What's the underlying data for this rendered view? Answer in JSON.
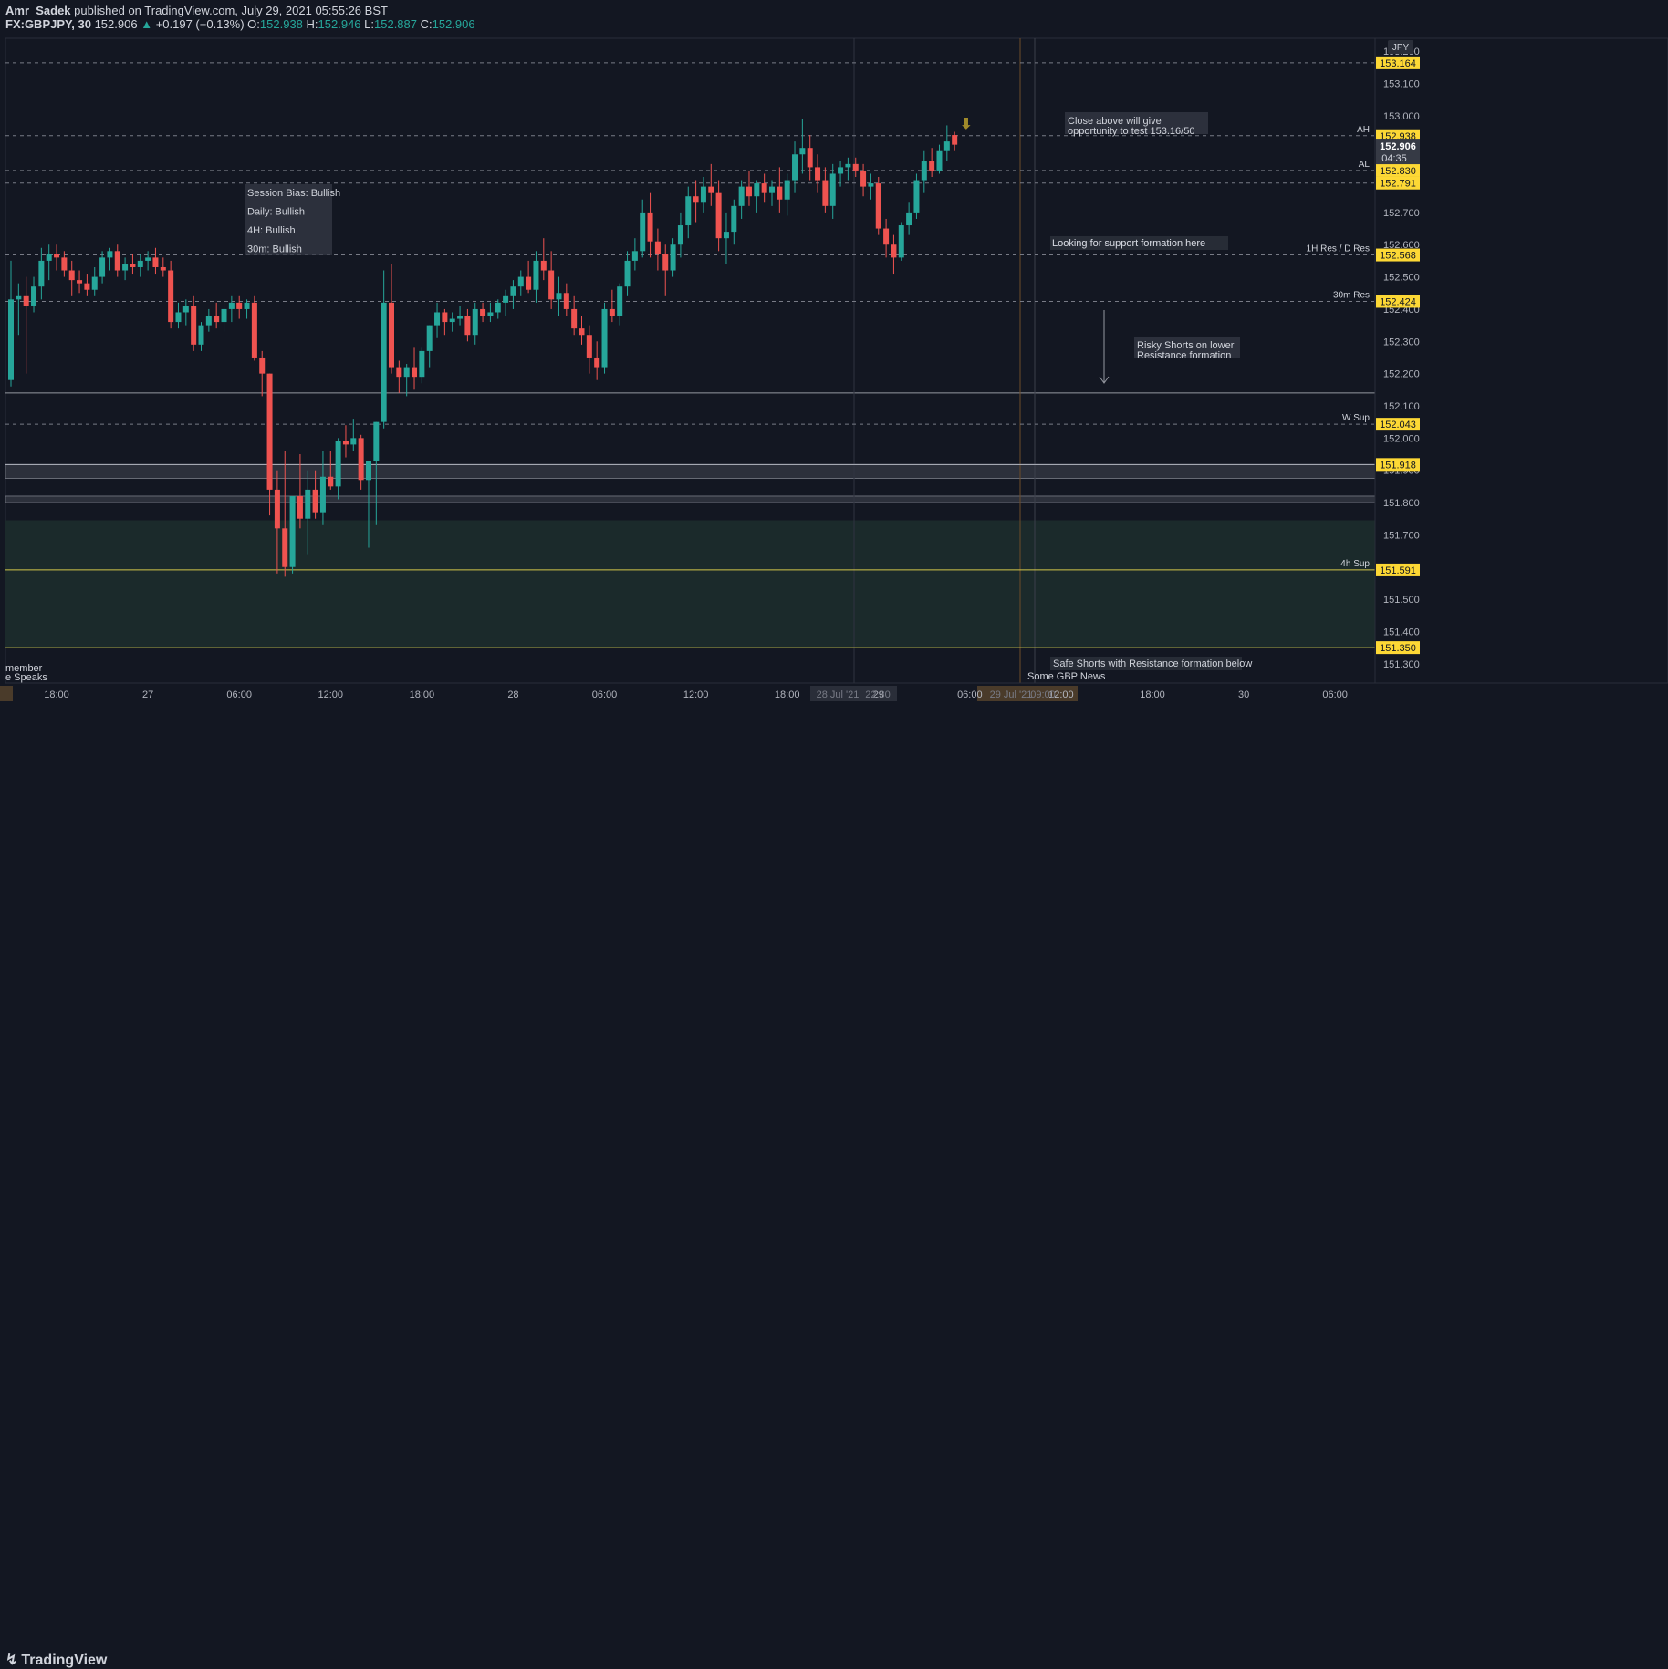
{
  "header": {
    "author": "Amr_Sadek",
    "published_text": "published on TradingView.com, July 29, 2021 05:55:26 BST",
    "symbol": "FX:GBPJPY, 30",
    "last": "152.906",
    "change": "+0.197 (+0.13%)",
    "o_label": "O:",
    "o_value": "152.938",
    "h_label": "H:",
    "h_value": "152.946",
    "l_label": "L:",
    "l_value": "152.887",
    "c_label": "C:",
    "c_value": "152.906"
  },
  "footer": {
    "brand": "TradingView"
  },
  "colors": {
    "background": "#131722",
    "up": "#26a69a",
    "down": "#ef5350",
    "label_bg": "#fdd835",
    "text": "#d1d4dc",
    "zone": "#1b2a2b"
  },
  "chart_data": {
    "type": "candlestick",
    "currency": "JPY",
    "y_range": [
      151.24,
      153.24
    ],
    "y_ticks": [
      "153.200",
      "153.100",
      "153.000",
      "152.900",
      "152.800",
      "152.700",
      "152.600",
      "152.500",
      "152.400",
      "152.300",
      "152.200",
      "152.100",
      "152.000",
      "151.900",
      "151.800",
      "151.700",
      "151.600",
      "151.500",
      "151.400",
      "151.300"
    ],
    "x_ticks": [
      {
        "label": "18:00",
        "bar": 6
      },
      {
        "label": "27",
        "bar": 18
      },
      {
        "label": "06:00",
        "bar": 30
      },
      {
        "label": "12:00",
        "bar": 42
      },
      {
        "label": "18:00",
        "bar": 54
      },
      {
        "label": "28",
        "bar": 66
      },
      {
        "label": "06:00",
        "bar": 78
      },
      {
        "label": "12:00",
        "bar": 90
      },
      {
        "label": "18:00",
        "bar": 102
      },
      {
        "label": "29",
        "bar": 114
      },
      {
        "label": "06:00",
        "bar": 126
      },
      {
        "label": "12:00",
        "bar": 138
      },
      {
        "label": "18:00",
        "bar": 150
      },
      {
        "label": "30",
        "bar": 162
      },
      {
        "label": "06:00",
        "bar": 174
      }
    ],
    "x_highlight_labels": [
      "28 Jul '21",
      "22:30",
      "29 Jul '21",
      "09:00"
    ],
    "candles": [
      {
        "o": 152.18,
        "h": 152.55,
        "l": 152.16,
        "c": 152.43
      },
      {
        "o": 152.43,
        "h": 152.48,
        "l": 152.32,
        "c": 152.44
      },
      {
        "o": 152.44,
        "h": 152.5,
        "l": 152.2,
        "c": 152.41
      },
      {
        "o": 152.41,
        "h": 152.5,
        "l": 152.39,
        "c": 152.47
      },
      {
        "o": 152.47,
        "h": 152.59,
        "l": 152.43,
        "c": 152.55
      },
      {
        "o": 152.55,
        "h": 152.6,
        "l": 152.49,
        "c": 152.57
      },
      {
        "o": 152.57,
        "h": 152.6,
        "l": 152.52,
        "c": 152.56
      },
      {
        "o": 152.56,
        "h": 152.58,
        "l": 152.5,
        "c": 152.52
      },
      {
        "o": 152.52,
        "h": 152.55,
        "l": 152.44,
        "c": 152.49
      },
      {
        "o": 152.49,
        "h": 152.52,
        "l": 152.45,
        "c": 152.48
      },
      {
        "o": 152.48,
        "h": 152.51,
        "l": 152.44,
        "c": 152.46
      },
      {
        "o": 152.46,
        "h": 152.53,
        "l": 152.44,
        "c": 152.5
      },
      {
        "o": 152.5,
        "h": 152.58,
        "l": 152.48,
        "c": 152.56
      },
      {
        "o": 152.56,
        "h": 152.59,
        "l": 152.52,
        "c": 152.58
      },
      {
        "o": 152.58,
        "h": 152.6,
        "l": 152.5,
        "c": 152.52
      },
      {
        "o": 152.52,
        "h": 152.56,
        "l": 152.49,
        "c": 152.54
      },
      {
        "o": 152.54,
        "h": 152.57,
        "l": 152.51,
        "c": 152.53
      },
      {
        "o": 152.53,
        "h": 152.57,
        "l": 152.5,
        "c": 152.55
      },
      {
        "o": 152.55,
        "h": 152.58,
        "l": 152.52,
        "c": 152.56
      },
      {
        "o": 152.56,
        "h": 152.59,
        "l": 152.51,
        "c": 152.53
      },
      {
        "o": 152.53,
        "h": 152.56,
        "l": 152.5,
        "c": 152.52
      },
      {
        "o": 152.52,
        "h": 152.55,
        "l": 152.34,
        "c": 152.36
      },
      {
        "o": 152.36,
        "h": 152.42,
        "l": 152.34,
        "c": 152.39
      },
      {
        "o": 152.39,
        "h": 152.43,
        "l": 152.35,
        "c": 152.41
      },
      {
        "o": 152.41,
        "h": 152.44,
        "l": 152.27,
        "c": 152.29
      },
      {
        "o": 152.29,
        "h": 152.36,
        "l": 152.27,
        "c": 152.35
      },
      {
        "o": 152.35,
        "h": 152.4,
        "l": 152.33,
        "c": 152.38
      },
      {
        "o": 152.38,
        "h": 152.42,
        "l": 152.34,
        "c": 152.36
      },
      {
        "o": 152.36,
        "h": 152.42,
        "l": 152.33,
        "c": 152.4
      },
      {
        "o": 152.4,
        "h": 152.44,
        "l": 152.36,
        "c": 152.42
      },
      {
        "o": 152.42,
        "h": 152.44,
        "l": 152.37,
        "c": 152.4
      },
      {
        "o": 152.4,
        "h": 152.43,
        "l": 152.37,
        "c": 152.42
      },
      {
        "o": 152.42,
        "h": 152.44,
        "l": 152.24,
        "c": 152.25
      },
      {
        "o": 152.25,
        "h": 152.27,
        "l": 152.13,
        "c": 152.2
      },
      {
        "o": 152.2,
        "h": 152.2,
        "l": 151.76,
        "c": 151.84
      },
      {
        "o": 151.84,
        "h": 151.9,
        "l": 151.58,
        "c": 151.72
      },
      {
        "o": 151.72,
        "h": 151.96,
        "l": 151.57,
        "c": 151.6
      },
      {
        "o": 151.6,
        "h": 151.82,
        "l": 151.58,
        "c": 151.82
      },
      {
        "o": 151.82,
        "h": 151.95,
        "l": 151.72,
        "c": 151.75
      },
      {
        "o": 151.75,
        "h": 151.9,
        "l": 151.64,
        "c": 151.84
      },
      {
        "o": 151.84,
        "h": 151.9,
        "l": 151.75,
        "c": 151.77
      },
      {
        "o": 151.77,
        "h": 151.96,
        "l": 151.73,
        "c": 151.88
      },
      {
        "o": 151.88,
        "h": 151.96,
        "l": 151.84,
        "c": 151.85
      },
      {
        "o": 151.85,
        "h": 152.0,
        "l": 151.81,
        "c": 151.99
      },
      {
        "o": 151.99,
        "h": 152.04,
        "l": 151.94,
        "c": 151.98
      },
      {
        "o": 151.98,
        "h": 152.06,
        "l": 151.96,
        "c": 152.0
      },
      {
        "o": 152.0,
        "h": 152.01,
        "l": 151.84,
        "c": 151.87
      },
      {
        "o": 151.87,
        "h": 151.93,
        "l": 151.66,
        "c": 151.93
      },
      {
        "o": 151.93,
        "h": 152.05,
        "l": 151.73,
        "c": 152.05
      },
      {
        "o": 152.05,
        "h": 152.52,
        "l": 152.03,
        "c": 152.42
      },
      {
        "o": 152.42,
        "h": 152.54,
        "l": 152.2,
        "c": 152.22
      },
      {
        "o": 152.22,
        "h": 152.24,
        "l": 152.14,
        "c": 152.19
      },
      {
        "o": 152.19,
        "h": 152.23,
        "l": 152.13,
        "c": 152.22
      },
      {
        "o": 152.22,
        "h": 152.28,
        "l": 152.15,
        "c": 152.19
      },
      {
        "o": 152.19,
        "h": 152.28,
        "l": 152.17,
        "c": 152.27
      },
      {
        "o": 152.27,
        "h": 152.35,
        "l": 152.22,
        "c": 152.35
      },
      {
        "o": 152.35,
        "h": 152.42,
        "l": 152.31,
        "c": 152.39
      },
      {
        "o": 152.39,
        "h": 152.4,
        "l": 152.32,
        "c": 152.36
      },
      {
        "o": 152.36,
        "h": 152.39,
        "l": 152.33,
        "c": 152.37
      },
      {
        "o": 152.37,
        "h": 152.41,
        "l": 152.35,
        "c": 152.38
      },
      {
        "o": 152.38,
        "h": 152.4,
        "l": 152.3,
        "c": 152.32
      },
      {
        "o": 152.32,
        "h": 152.42,
        "l": 152.29,
        "c": 152.4
      },
      {
        "o": 152.4,
        "h": 152.42,
        "l": 152.36,
        "c": 152.38
      },
      {
        "o": 152.38,
        "h": 152.42,
        "l": 152.36,
        "c": 152.39
      },
      {
        "o": 152.39,
        "h": 152.43,
        "l": 152.37,
        "c": 152.42
      },
      {
        "o": 152.42,
        "h": 152.46,
        "l": 152.38,
        "c": 152.44
      },
      {
        "o": 152.44,
        "h": 152.49,
        "l": 152.4,
        "c": 152.47
      },
      {
        "o": 152.47,
        "h": 152.52,
        "l": 152.44,
        "c": 152.5
      },
      {
        "o": 152.5,
        "h": 152.55,
        "l": 152.45,
        "c": 152.46
      },
      {
        "o": 152.46,
        "h": 152.58,
        "l": 152.42,
        "c": 152.55
      },
      {
        "o": 152.55,
        "h": 152.62,
        "l": 152.49,
        "c": 152.52
      },
      {
        "o": 152.52,
        "h": 152.58,
        "l": 152.4,
        "c": 152.43
      },
      {
        "o": 152.43,
        "h": 152.5,
        "l": 152.38,
        "c": 152.45
      },
      {
        "o": 152.45,
        "h": 152.48,
        "l": 152.38,
        "c": 152.4
      },
      {
        "o": 152.4,
        "h": 152.44,
        "l": 152.32,
        "c": 152.34
      },
      {
        "o": 152.34,
        "h": 152.38,
        "l": 152.29,
        "c": 152.32
      },
      {
        "o": 152.32,
        "h": 152.35,
        "l": 152.2,
        "c": 152.25
      },
      {
        "o": 152.25,
        "h": 152.3,
        "l": 152.18,
        "c": 152.22
      },
      {
        "o": 152.22,
        "h": 152.42,
        "l": 152.2,
        "c": 152.4
      },
      {
        "o": 152.4,
        "h": 152.46,
        "l": 152.36,
        "c": 152.38
      },
      {
        "o": 152.38,
        "h": 152.48,
        "l": 152.35,
        "c": 152.47
      },
      {
        "o": 152.47,
        "h": 152.58,
        "l": 152.44,
        "c": 152.55
      },
      {
        "o": 152.55,
        "h": 152.62,
        "l": 152.52,
        "c": 152.58
      },
      {
        "o": 152.58,
        "h": 152.74,
        "l": 152.56,
        "c": 152.7
      },
      {
        "o": 152.7,
        "h": 152.76,
        "l": 152.56,
        "c": 152.61
      },
      {
        "o": 152.61,
        "h": 152.65,
        "l": 152.52,
        "c": 152.57
      },
      {
        "o": 152.57,
        "h": 152.6,
        "l": 152.44,
        "c": 152.52
      },
      {
        "o": 152.52,
        "h": 152.62,
        "l": 152.5,
        "c": 152.6
      },
      {
        "o": 152.6,
        "h": 152.7,
        "l": 152.56,
        "c": 152.66
      },
      {
        "o": 152.66,
        "h": 152.78,
        "l": 152.62,
        "c": 152.75
      },
      {
        "o": 152.75,
        "h": 152.8,
        "l": 152.67,
        "c": 152.73
      },
      {
        "o": 152.73,
        "h": 152.81,
        "l": 152.7,
        "c": 152.78
      },
      {
        "o": 152.78,
        "h": 152.85,
        "l": 152.72,
        "c": 152.76
      },
      {
        "o": 152.76,
        "h": 152.8,
        "l": 152.58,
        "c": 152.62
      },
      {
        "o": 152.62,
        "h": 152.7,
        "l": 152.54,
        "c": 152.64
      },
      {
        "o": 152.64,
        "h": 152.74,
        "l": 152.6,
        "c": 152.72
      },
      {
        "o": 152.72,
        "h": 152.8,
        "l": 152.68,
        "c": 152.78
      },
      {
        "o": 152.78,
        "h": 152.83,
        "l": 152.72,
        "c": 152.75
      },
      {
        "o": 152.75,
        "h": 152.8,
        "l": 152.7,
        "c": 152.79
      },
      {
        "o": 152.79,
        "h": 152.82,
        "l": 152.73,
        "c": 152.76
      },
      {
        "o": 152.76,
        "h": 152.8,
        "l": 152.72,
        "c": 152.78
      },
      {
        "o": 152.78,
        "h": 152.84,
        "l": 152.7,
        "c": 152.74
      },
      {
        "o": 152.74,
        "h": 152.82,
        "l": 152.69,
        "c": 152.8
      },
      {
        "o": 152.8,
        "h": 152.92,
        "l": 152.76,
        "c": 152.88
      },
      {
        "o": 152.88,
        "h": 152.99,
        "l": 152.82,
        "c": 152.9
      },
      {
        "o": 152.9,
        "h": 152.94,
        "l": 152.8,
        "c": 152.84
      },
      {
        "o": 152.84,
        "h": 152.88,
        "l": 152.76,
        "c": 152.8
      },
      {
        "o": 152.8,
        "h": 152.84,
        "l": 152.7,
        "c": 152.72
      },
      {
        "o": 152.72,
        "h": 152.85,
        "l": 152.68,
        "c": 152.82
      },
      {
        "o": 152.82,
        "h": 152.86,
        "l": 152.78,
        "c": 152.84
      },
      {
        "o": 152.84,
        "h": 152.87,
        "l": 152.8,
        "c": 152.85
      },
      {
        "o": 152.85,
        "h": 152.87,
        "l": 152.81,
        "c": 152.83
      },
      {
        "o": 152.83,
        "h": 152.85,
        "l": 152.75,
        "c": 152.78
      },
      {
        "o": 152.78,
        "h": 152.82,
        "l": 152.74,
        "c": 152.79
      },
      {
        "o": 152.79,
        "h": 152.81,
        "l": 152.63,
        "c": 152.65
      },
      {
        "o": 152.65,
        "h": 152.68,
        "l": 152.56,
        "c": 152.6
      },
      {
        "o": 152.6,
        "h": 152.63,
        "l": 152.51,
        "c": 152.56
      },
      {
        "o": 152.56,
        "h": 152.67,
        "l": 152.55,
        "c": 152.66
      },
      {
        "o": 152.66,
        "h": 152.73,
        "l": 152.63,
        "c": 152.7
      },
      {
        "o": 152.7,
        "h": 152.82,
        "l": 152.68,
        "c": 152.8
      },
      {
        "o": 152.8,
        "h": 152.89,
        "l": 152.76,
        "c": 152.86
      },
      {
        "o": 152.86,
        "h": 152.9,
        "l": 152.81,
        "c": 152.83
      },
      {
        "o": 152.83,
        "h": 152.91,
        "l": 152.82,
        "c": 152.89
      },
      {
        "o": 152.89,
        "h": 152.97,
        "l": 152.86,
        "c": 152.92
      },
      {
        "o": 152.94,
        "h": 152.95,
        "l": 152.89,
        "c": 152.91
      }
    ],
    "levels": [
      {
        "price": 153.164,
        "label": "153.164",
        "tag": "",
        "style": "dashed"
      },
      {
        "price": 152.938,
        "label": "152.938",
        "tag": "AH",
        "style": "dashed"
      },
      {
        "price": 152.83,
        "label": "152.830",
        "tag": "AL",
        "style": "dashed"
      },
      {
        "price": 152.791,
        "label": "152.791",
        "tag": "",
        "style": "dashed"
      },
      {
        "price": 152.568,
        "label": "152.568",
        "tag": "1H Res / D Res",
        "style": "dashed"
      },
      {
        "price": 152.424,
        "label": "152.424",
        "tag": "30m Res",
        "style": "dashed"
      },
      {
        "price": 152.043,
        "label": "152.043",
        "tag": "W Sup",
        "style": "dashed"
      },
      {
        "price": 151.918,
        "label": "151.918",
        "tag": "",
        "style": "solid"
      },
      {
        "price": 151.591,
        "label": "151.591",
        "tag": "4h Sup",
        "style": "solid"
      },
      {
        "price": 151.35,
        "label": "151.350",
        "tag": "",
        "style": "solid"
      }
    ],
    "current_price": {
      "value": "152.906",
      "countdown": "04:35"
    },
    "notes": {
      "session_bias": [
        "Session Bias: Bullish",
        "Daily: Bullish",
        "4H: Bullish",
        "30m: Bullish"
      ],
      "close_above": [
        "Close above will give",
        "opportunity to test 153.16/50"
      ],
      "support": "Looking for support formation here",
      "risky": [
        "Risky Shorts on lower",
        "Resistance formation"
      ],
      "safe": "Safe Shorts with Resistance formation below",
      "news": "Some GBP News",
      "event_left": [
        "member",
        "e Speaks"
      ]
    }
  }
}
